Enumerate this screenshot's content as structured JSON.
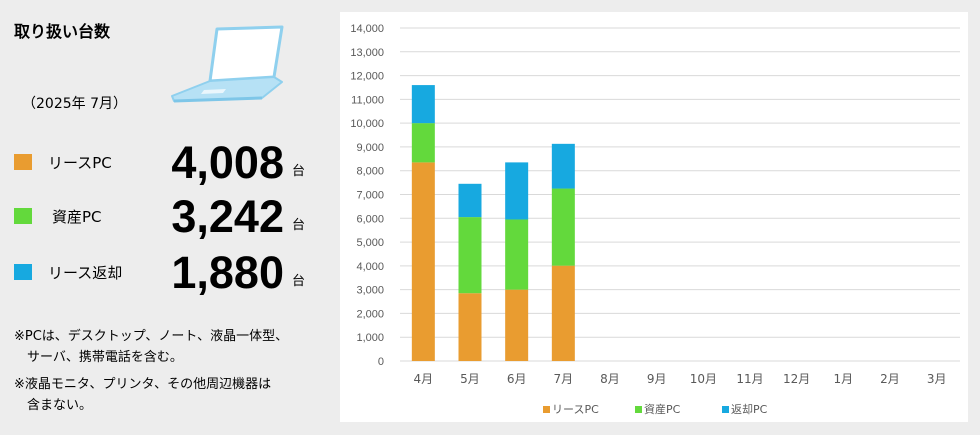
{
  "panel": {
    "title": "取り扱い台数",
    "period": "（2025年 7月）",
    "stats": [
      {
        "label": "リースPC",
        "value": "4,008",
        "unit": "台",
        "color": "#E99C30"
      },
      {
        "label": "資産PC",
        "value": "3,242",
        "unit": "台",
        "color": "#63D93C"
      },
      {
        "label": "リース返却",
        "value": "1,880",
        "unit": "台",
        "color": "#17A9E0"
      }
    ],
    "notes": [
      "※PCは、デスクトップ、ノート、液晶一体型、",
      "　サーバ、携帯電話を含む。",
      "※液晶モニタ、プリンタ、その他周辺機器は",
      "　含まない。"
    ],
    "laptop_icon": "laptop-icon"
  },
  "chart_data": {
    "type": "bar",
    "stacked": true,
    "categories": [
      "4月",
      "5月",
      "6月",
      "7月",
      "8月",
      "9月",
      "10月",
      "11月",
      "12月",
      "1月",
      "2月",
      "3月"
    ],
    "series": [
      {
        "name": "リースPC",
        "color": "#E99C30",
        "values": [
          8350,
          2850,
          3000,
          4008,
          null,
          null,
          null,
          null,
          null,
          null,
          null,
          null
        ]
      },
      {
        "name": "資産PC",
        "color": "#63D93C",
        "values": [
          1650,
          3200,
          2950,
          3242,
          null,
          null,
          null,
          null,
          null,
          null,
          null,
          null
        ]
      },
      {
        "name": "返却PC",
        "color": "#17A9E0",
        "values": [
          1600,
          1400,
          2400,
          1880,
          null,
          null,
          null,
          null,
          null,
          null,
          null,
          null
        ]
      }
    ],
    "ylim": [
      0,
      14000
    ],
    "yticks": [
      "0",
      "1,000",
      "2,000",
      "3,000",
      "4,000",
      "5,000",
      "6,000",
      "7,000",
      "8,000",
      "9,000",
      "10,000",
      "11,000",
      "12,000",
      "13,000",
      "14,000"
    ],
    "grid": true,
    "legend": "bottom"
  }
}
